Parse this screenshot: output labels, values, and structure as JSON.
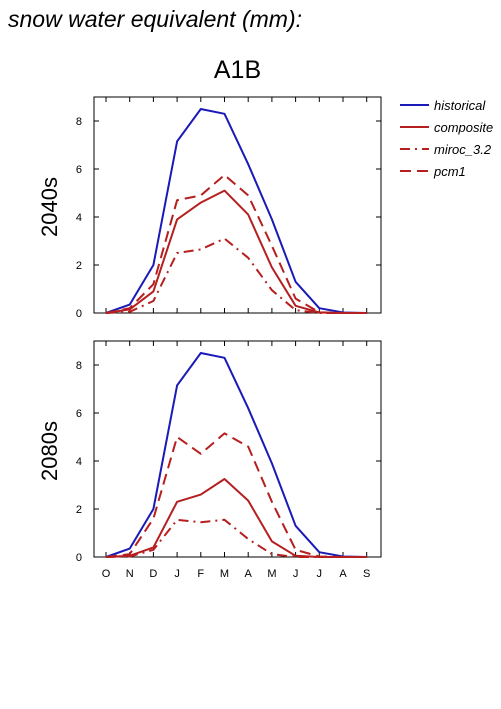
{
  "page_title": "snow water equivalent (mm):",
  "scenario_title": "A1B",
  "colors": {
    "historical": "#1a1ab8",
    "future": "#b51f1f"
  },
  "legend": [
    {
      "key": "historical",
      "label": "historical",
      "dash": "solid",
      "color": "#1a1ab8"
    },
    {
      "key": "composite",
      "label": "composite",
      "dash": "solid",
      "color": "#b51f1f"
    },
    {
      "key": "miroc",
      "label": "miroc_3.2",
      "dash": "dashdot",
      "color": "#b51f1f"
    },
    {
      "key": "pcm1",
      "label": "pcm1",
      "dash": "dash",
      "color": "#b51f1f"
    }
  ],
  "chart_data": [
    {
      "type": "line",
      "panel_label": "2040s",
      "categories": [
        "O",
        "N",
        "D",
        "J",
        "F",
        "M",
        "A",
        "M",
        "J",
        "J",
        "A",
        "S"
      ],
      "yticks": [
        0,
        2,
        4,
        6,
        8
      ],
      "ylim": [
        0,
        9
      ],
      "series": [
        {
          "name": "historical",
          "values": [
            0,
            0.35,
            2.0,
            7.15,
            8.5,
            8.3,
            6.2,
            3.9,
            1.3,
            0.2,
            0.02,
            0
          ]
        },
        {
          "name": "composite",
          "values": [
            0,
            0.15,
            0.9,
            3.9,
            4.6,
            5.1,
            4.1,
            1.9,
            0.3,
            0.02,
            0,
            0
          ]
        },
        {
          "name": "miroc_3.2",
          "values": [
            0,
            0.05,
            0.5,
            2.5,
            2.65,
            3.1,
            2.3,
            0.95,
            0.12,
            0,
            0,
            0
          ]
        },
        {
          "name": "pcm1",
          "values": [
            0,
            0.2,
            1.2,
            4.7,
            4.9,
            5.75,
            4.9,
            2.8,
            0.6,
            0.03,
            0,
            0
          ]
        }
      ]
    },
    {
      "type": "line",
      "panel_label": "2080s",
      "categories": [
        "O",
        "N",
        "D",
        "J",
        "F",
        "M",
        "A",
        "M",
        "J",
        "J",
        "A",
        "S"
      ],
      "yticks": [
        0,
        2,
        4,
        6,
        8
      ],
      "ylim": [
        0,
        9
      ],
      "series": [
        {
          "name": "historical",
          "values": [
            0,
            0.35,
            2.0,
            7.15,
            8.5,
            8.3,
            6.2,
            3.9,
            1.3,
            0.2,
            0.02,
            0
          ]
        },
        {
          "name": "composite",
          "values": [
            0,
            0.05,
            0.4,
            2.3,
            2.6,
            3.25,
            2.35,
            0.65,
            0.05,
            0,
            0,
            0
          ]
        },
        {
          "name": "miroc_3.2",
          "values": [
            0,
            0.02,
            0.3,
            1.55,
            1.45,
            1.55,
            0.75,
            0.12,
            0,
            0,
            0,
            0
          ]
        },
        {
          "name": "pcm1",
          "values": [
            0,
            0.12,
            1.6,
            5.0,
            4.3,
            5.15,
            4.6,
            2.3,
            0.3,
            0.02,
            0,
            0
          ]
        }
      ]
    }
  ]
}
